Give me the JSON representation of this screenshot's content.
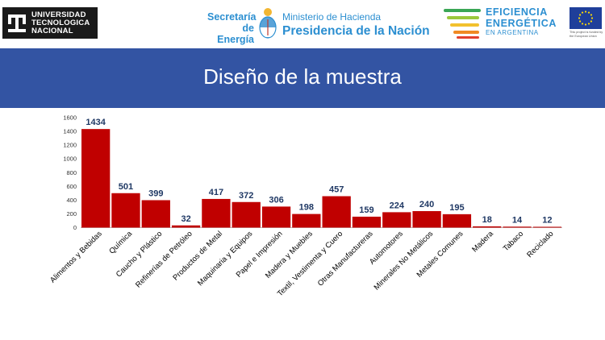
{
  "header": {
    "utn_lines": [
      "UNIVERSIDAD",
      "TECNOLOGICA",
      "NACIONAL"
    ],
    "secretaria_lines": [
      "Secretaría",
      "de Energía"
    ],
    "ministerio_line1": "Ministerio de Hacienda",
    "ministerio_line2": "Presidencia de la Nación",
    "ee_line1": "EFICIENCIA",
    "ee_line2": "ENERGÉTICA",
    "ee_line3": "EN ARGENTINA",
    "eu_caption": "This project is funded by the European Union",
    "colors": {
      "brand_blue": "#2c8fd1",
      "banner": "#3354a3"
    }
  },
  "slide": {
    "title": "Diseño de la muestra"
  },
  "chart_data": {
    "type": "bar",
    "title": "",
    "xlabel": "",
    "ylabel": "",
    "categories": [
      "Alimentos y Bebidas",
      "Química",
      "Caucho y Plástico",
      "Refinerías de Petróleo",
      "Productos de Metal",
      "Maquinaria y Equipos",
      "Papel e Impresión",
      "Madera y Muebles",
      "Textil, Vestimenta y Cuero",
      "Otras Manufactureras",
      "Automotores",
      "Minerales No Metálicos",
      "Metales Comunes",
      "Madera",
      "Tabaco",
      "Reciclado"
    ],
    "values": [
      1434,
      501,
      399,
      32,
      417,
      372,
      306,
      198,
      457,
      159,
      224,
      240,
      195,
      18,
      14,
      12
    ],
    "ylim": [
      0,
      1600
    ],
    "yticks": [
      0,
      200,
      400,
      600,
      800,
      1000,
      1200,
      1400,
      1600
    ],
    "grid": false,
    "data_labels": true,
    "bar_color": "#c00000",
    "label_color": "#1f3864"
  }
}
